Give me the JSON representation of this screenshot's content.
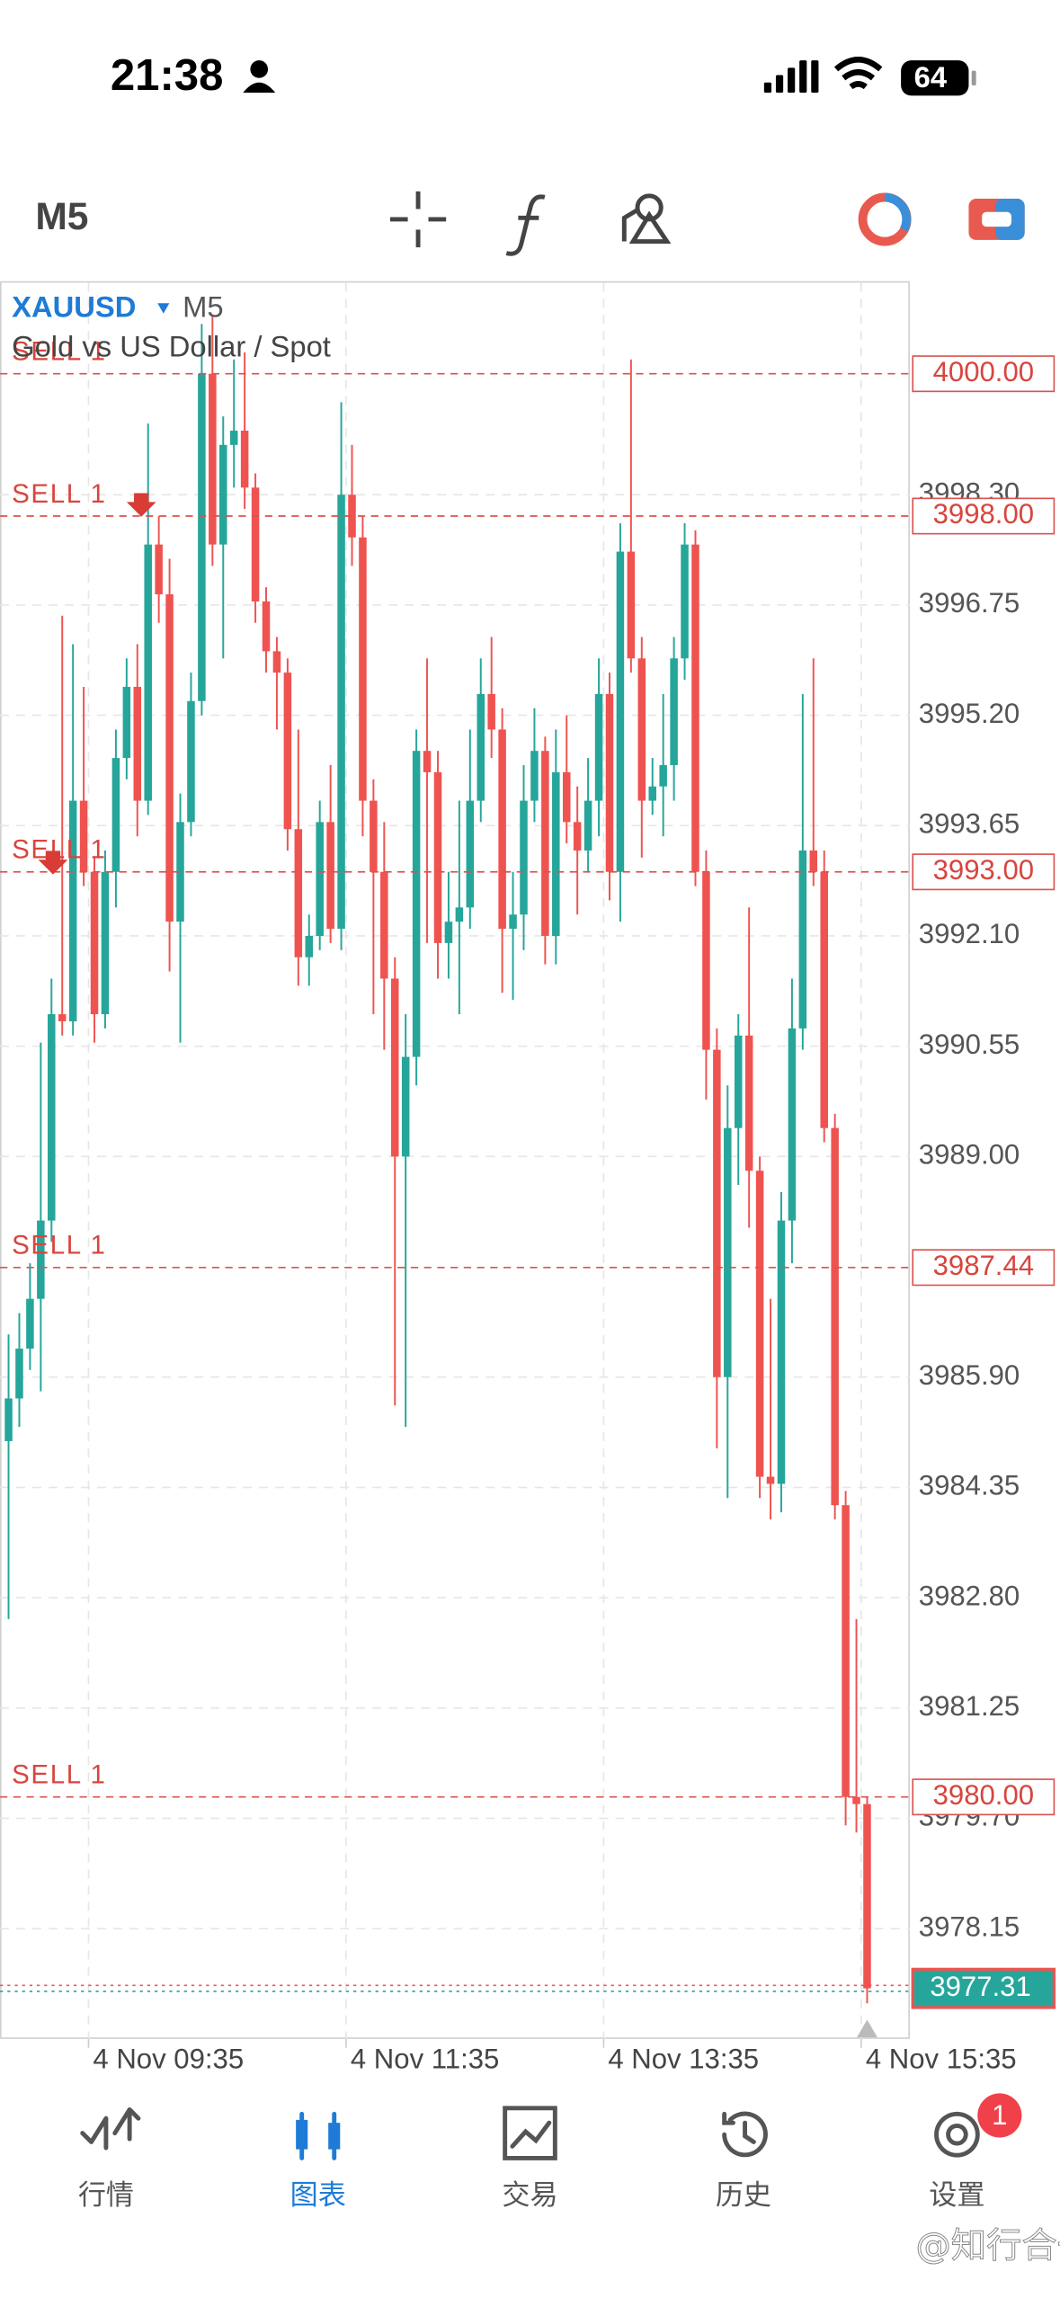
{
  "status_bar": {
    "time": "21:38",
    "battery": "64"
  },
  "toolbar": {
    "timeframe": "M5"
  },
  "chart_data": {
    "type": "candlestick",
    "symbol": "XAUUSD",
    "timeframe": "M5",
    "subtitle": "Gold vs US Dollar / Spot",
    "categories": [
      null,
      null,
      null,
      null,
      null,
      null,
      null,
      null,
      "4 Nov 09:35",
      null,
      null,
      null,
      null,
      null,
      null,
      null,
      null,
      null,
      null,
      null,
      null,
      null,
      null,
      null,
      null,
      null,
      null,
      null,
      null,
      null,
      null,
      null,
      "4 Nov 11:35",
      null,
      null,
      null,
      null,
      null,
      null,
      null,
      null,
      null,
      null,
      null,
      null,
      null,
      null,
      null,
      null,
      null,
      null,
      null,
      null,
      null,
      null,
      null,
      "4 Nov 13:35",
      null,
      null,
      null,
      null,
      null,
      null,
      null,
      null,
      null,
      null,
      null,
      null,
      null,
      null,
      null,
      null,
      null,
      null,
      null,
      null,
      null,
      null,
      null,
      "4 Nov 15:35"
    ],
    "open": [
      3985.0,
      3985.6,
      3986.3,
      3987.0,
      3988.1,
      3991.0,
      3990.9,
      3994.0,
      3993.0,
      3991.0,
      3993.0,
      3994.6,
      3995.6,
      3994.0,
      3997.6,
      3996.9,
      3992.3,
      3993.7,
      3995.4,
      4000.0,
      3997.6,
      3999.0,
      3999.2,
      3998.4,
      3996.8,
      3996.1,
      3995.8,
      3993.6,
      3991.8,
      3992.1,
      3993.7,
      3992.2,
      3998.3,
      3997.7,
      3994.0,
      3993.0,
      3991.5,
      3989.0,
      3990.4,
      3994.7,
      3994.4,
      3992.0,
      3992.3,
      3992.5,
      3994.0,
      3995.5,
      3995.0,
      3992.2,
      3992.4,
      3994.0,
      3994.7,
      3992.1,
      3994.4,
      3993.7,
      3993.3,
      3994.0,
      3995.5,
      3993.0,
      3997.5,
      3996.0,
      3994.0,
      3994.2,
      3994.5,
      3996.0,
      3997.6,
      3993.0,
      3990.5,
      3985.9,
      3989.4,
      3990.7,
      3988.8,
      3984.5,
      3984.4,
      3988.1,
      3990.8,
      3993.3,
      3993.0,
      3989.4,
      3984.1,
      3980.0,
      3979.9
    ],
    "high": [
      3986.5,
      3986.8,
      3987.5,
      3990.6,
      3991.5,
      3996.6,
      3996.2,
      3995.6,
      3993.2,
      3993.3,
      3995.0,
      3996.0,
      3996.2,
      3999.3,
      3998.0,
      3997.4,
      3994.1,
      3995.8,
      4000.7,
      4000.8,
      3999.4,
      4000.2,
      4000.3,
      3998.6,
      3997.0,
      3996.3,
      3996.0,
      3995.0,
      3992.4,
      3994.0,
      3994.5,
      3999.6,
      3999.0,
      3998.0,
      3994.3,
      3993.7,
      3991.8,
      3991.0,
      3995.0,
      3996.0,
      3994.7,
      3993.0,
      3994.0,
      3995.0,
      3996.0,
      3996.3,
      3995.3,
      3993.0,
      3994.5,
      3995.3,
      3994.9,
      3995.0,
      3995.2,
      3994.2,
      3994.6,
      3996.0,
      3995.8,
      3997.9,
      4000.2,
      3996.3,
      3994.6,
      3995.5,
      3996.3,
      3997.9,
      3997.8,
      3993.3,
      3990.8,
      3990.0,
      3991.0,
      3992.5,
      3989.0,
      3987.0,
      3988.5,
      3991.5,
      3995.5,
      3996.0,
      3993.3,
      3989.6,
      3984.3,
      3982.5,
      3980.0
    ],
    "low": [
      3982.5,
      3985.2,
      3986.0,
      3985.7,
      3987.8,
      3990.7,
      3990.7,
      3992.8,
      3990.6,
      3990.8,
      3992.5,
      3994.3,
      3993.5,
      3993.8,
      3996.5,
      3991.6,
      3990.6,
      3993.5,
      3995.2,
      3997.3,
      3996.0,
      3998.4,
      3998.1,
      3996.5,
      3995.8,
      3995.0,
      3993.3,
      3991.4,
      3991.4,
      3991.9,
      3992.0,
      3991.9,
      3997.3,
      3993.5,
      3991.0,
      3990.5,
      3985.5,
      3985.2,
      3990.0,
      3992.0,
      3991.5,
      3991.5,
      3991.0,
      3992.2,
      3993.7,
      3994.6,
      3991.3,
      3991.2,
      3991.9,
      3993.7,
      3991.7,
      3991.7,
      3993.4,
      3992.4,
      3993.0,
      3993.5,
      3992.6,
      3992.3,
      3995.8,
      3993.2,
      3993.8,
      3993.5,
      3994.0,
      3995.7,
      3992.8,
      3989.8,
      3984.9,
      3984.2,
      3988.6,
      3988.0,
      3984.2,
      3983.9,
      3984.0,
      3987.5,
      3990.5,
      3992.8,
      3989.2,
      3983.9,
      3979.6,
      3979.5,
      3977.1
    ],
    "close": [
      3985.6,
      3986.3,
      3987.0,
      3988.1,
      3991.0,
      3990.9,
      3994.0,
      3993.0,
      3991.0,
      3993.0,
      3994.6,
      3995.6,
      3994.0,
      3997.6,
      3996.9,
      3992.3,
      3993.7,
      3995.4,
      4000.0,
      3997.6,
      3999.0,
      3999.2,
      3998.4,
      3996.8,
      3996.1,
      3995.8,
      3993.6,
      3991.8,
      3992.1,
      3993.7,
      3992.2,
      3998.3,
      3997.7,
      3994.0,
      3993.0,
      3991.5,
      3989.0,
      3990.4,
      3994.7,
      3994.4,
      3992.0,
      3992.3,
      3992.5,
      3994.0,
      3995.5,
      3995.0,
      3992.2,
      3992.4,
      3994.0,
      3994.7,
      3992.1,
      3994.4,
      3993.7,
      3993.3,
      3994.0,
      3995.5,
      3993.0,
      3997.5,
      3996.0,
      3994.0,
      3994.2,
      3994.5,
      3996.0,
      3997.6,
      3993.0,
      3990.5,
      3985.9,
      3989.4,
      3990.7,
      3988.8,
      3984.5,
      3984.4,
      3988.1,
      3990.8,
      3993.3,
      3993.0,
      3989.4,
      3984.1,
      3980.0,
      3979.9,
      3977.31
    ],
    "up_color": "#26a69a",
    "down_color": "#ef5350",
    "ylim": [
      3976.6,
      4001.28
    ],
    "yticks": [
      {
        "value": 3978.15,
        "label": "3978.15"
      },
      {
        "value": 3979.7,
        "label": "3979.70"
      },
      3981.25,
      {
        "value": 3982.8,
        "label": "3982.80"
      },
      3984.35,
      {
        "value": 3985.9,
        "label": "3985.90"
      },
      {
        "value": 3989,
        "label": "3989.00"
      },
      3990.55,
      {
        "value": 3992.1,
        "label": "3992.10"
      },
      3993.65,
      {
        "value": 3995.2,
        "label": "3995.20"
      },
      3996.75,
      {
        "value": 3998.3,
        "label": "3998.30"
      }
    ],
    "grid": true,
    "orders": [
      {
        "label": "SELL 1",
        "price": 4000,
        "price_label": "4000.00"
      },
      {
        "label": "SELL 1",
        "price": 3998,
        "price_label": "3998.00"
      },
      {
        "label": "SELL 1",
        "price": 3993,
        "price_label": "3993.00"
      },
      {
        "label": "SELL 1",
        "price": 3987.44
      },
      {
        "label": "SELL 1",
        "price": 3980,
        "price_label": "3980.00"
      }
    ],
    "last_price": 3977.31
  },
  "nav": {
    "items": [
      {
        "label": "行情"
      },
      {
        "label": "图表"
      },
      {
        "label": "交易"
      },
      {
        "label": "历史"
      },
      {
        "label": "设置"
      }
    ],
    "badge": "1"
  },
  "watermark": "@知行合一_老戴"
}
